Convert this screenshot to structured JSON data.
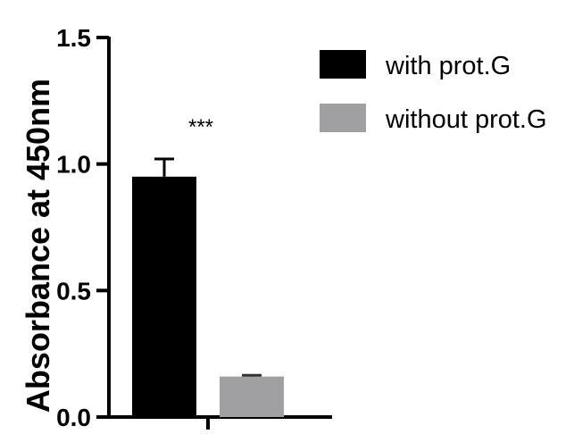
{
  "chart_data": {
    "type": "bar",
    "title": "",
    "xlabel": "",
    "ylabel": "Absorbance at 450nm",
    "ylim": [
      0,
      1.5
    ],
    "yticks": [
      "0.0",
      "0.5",
      "1.0",
      "1.5"
    ],
    "grid": false,
    "legend_position": "top-right",
    "series": [
      {
        "name": "with prot.G",
        "value": 0.95,
        "error": 0.07,
        "color": "#000000"
      },
      {
        "name": "without prot.G",
        "value": 0.16,
        "error": 0.005,
        "color": "#a0a0a2"
      }
    ],
    "annotation": "***"
  }
}
